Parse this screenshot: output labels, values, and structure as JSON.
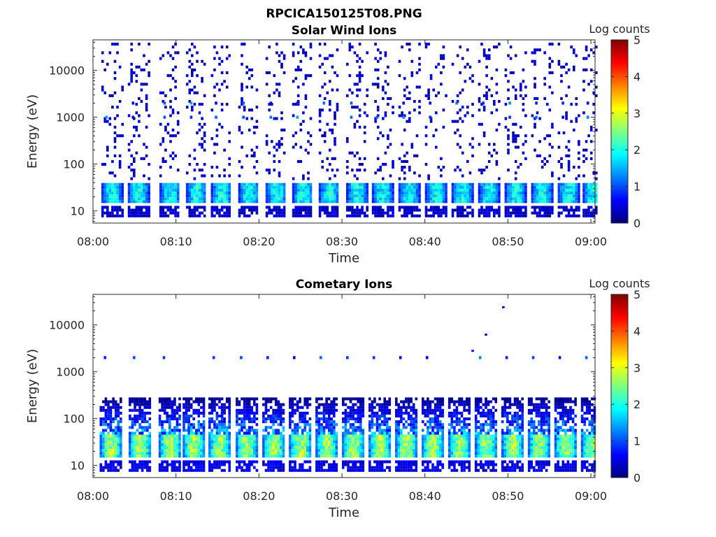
{
  "figure": {
    "title": "RPCICA150125T08.PNG"
  },
  "colormap": {
    "name": "jet",
    "stops": [
      "#00007f",
      "#0000ff",
      "#0080ff",
      "#00ffff",
      "#80ff80",
      "#ffff00",
      "#ff8000",
      "#ff0000",
      "#7f0000"
    ]
  },
  "chart_data": [
    {
      "type": "heatmap",
      "title": "Solar Wind Ions",
      "xlabel": "Time",
      "ylabel": "Energy (eV)",
      "x_tick_labels": [
        "08:00",
        "08:10",
        "08:20",
        "08:30",
        "08:40",
        "08:50",
        "09:00"
      ],
      "x_tick_minutes": [
        0,
        10,
        20,
        30,
        40,
        50,
        60
      ],
      "xlim_minutes": [
        0,
        60.5
      ],
      "yscale": "log",
      "ylim": [
        5.5,
        45000
      ],
      "y_tick_labels": [
        "10",
        "100",
        "1000",
        "10000"
      ],
      "y_tick_values": [
        10,
        100,
        1000,
        10000
      ],
      "colorbar": {
        "label": "Log counts",
        "range": [
          0,
          5
        ],
        "tick_labels": [
          "0",
          "1",
          "2",
          "3",
          "4",
          "5"
        ]
      },
      "scan_start_minutes": [
        1.0,
        4.2,
        8.0,
        11.2,
        14.2,
        17.5,
        20.8,
        24.0,
        27.2,
        30.5,
        33.6,
        36.8,
        40.0,
        43.2,
        46.4,
        49.6,
        52.8,
        56.0,
        59.0
      ],
      "scan_duration_minutes": 2.4,
      "core": {
        "energy_eV": [
          15,
          42
        ],
        "peak_log_counts": 2.3,
        "low_energy_band_eV": [
          7,
          12
        ],
        "low_energy_log_counts": 0.15
      },
      "sparse_energy_range_eV": [
        45,
        40000
      ],
      "sparse_log_counts": 0.35,
      "persistent_lines_eV": [
        1000,
        2000
      ],
      "persistent_line_log_counts": 1.0,
      "grid": false,
      "legend": "none"
    },
    {
      "type": "heatmap",
      "title": "Cometary Ions",
      "xlabel": "Time",
      "ylabel": "Energy (eV)",
      "x_tick_labels": [
        "08:00",
        "08:10",
        "08:20",
        "08:30",
        "08:40",
        "08:50",
        "09:00"
      ],
      "x_tick_minutes": [
        0,
        10,
        20,
        30,
        40,
        50,
        60
      ],
      "xlim_minutes": [
        0,
        60.5
      ],
      "yscale": "log",
      "ylim": [
        5.5,
        45000
      ],
      "y_tick_labels": [
        "10",
        "100",
        "1000",
        "10000"
      ],
      "y_tick_values": [
        10,
        100,
        1000,
        10000
      ],
      "colorbar": {
        "label": "Log counts",
        "range": [
          0,
          5
        ],
        "tick_labels": [
          "0",
          "1",
          "2",
          "3",
          "4",
          "5"
        ]
      },
      "scan_start_minutes": [
        0.8,
        4.3,
        7.9,
        10.8,
        13.9,
        17.2,
        20.4,
        23.6,
        26.8,
        30.0,
        33.2,
        36.4,
        39.6,
        42.8,
        46.0,
        49.2,
        52.4,
        55.6,
        58.8
      ],
      "scan_duration_minutes": 2.5,
      "core": {
        "energy_eV": [
          14,
          45
        ],
        "peak_log_counts": 3.2,
        "upper_energy_eV": [
          45,
          300
        ],
        "upper_log_counts": 1.3,
        "low_energy_band_eV": [
          7,
          12
        ],
        "low_energy_log_counts": 0.3
      },
      "isolated_points": [
        {
          "time_minutes": 49.3,
          "energy_eV": 24000,
          "log_counts": 0.5
        },
        {
          "time_minutes": 47.2,
          "energy_eV": 6200,
          "log_counts": 0.3
        },
        {
          "time_minutes": 45.6,
          "energy_eV": 2800,
          "log_counts": 0.6
        }
      ],
      "persistent_lines_eV": [
        2000
      ],
      "persistent_line_log_counts": 0.9,
      "grid": false,
      "legend": "none"
    }
  ]
}
